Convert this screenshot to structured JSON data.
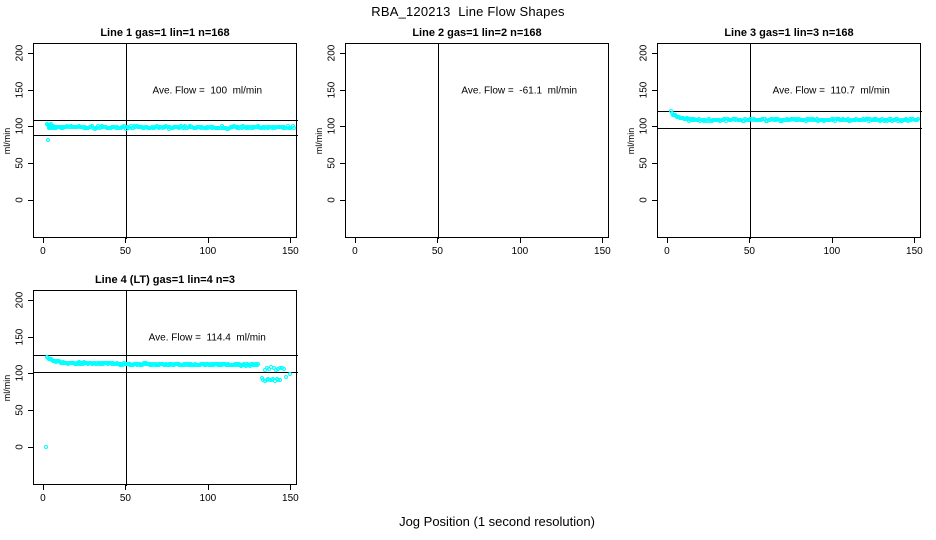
{
  "page": {
    "main_title": "RBA_120213  Line Flow Shapes",
    "x_axis_label": "Jog Position (1 second resolution)",
    "background_color": "#ffffff",
    "axis_color": "#000000"
  },
  "chart_data": {
    "type": "scatter",
    "point_color": "#00ffff",
    "layout": {
      "rows": 2,
      "cols": 3,
      "xlim": [
        -6,
        154
      ],
      "ylim": [
        -51,
        213
      ],
      "x_ticks": [
        0,
        50,
        100,
        150
      ],
      "y_ticks": [
        0,
        50,
        100,
        150,
        200
      ],
      "grid": false,
      "legend": "none"
    },
    "shared": {
      "ylabel": "ml/min",
      "vline_x": 50,
      "annotation_x": 99,
      "annotation_y": 150
    },
    "plots": [
      {
        "row": 0,
        "col": 0,
        "title": "Line 1 gas=1 lin=1 n=168",
        "n": 168,
        "ave_flow": 100,
        "annotation": "Ave. Flow =  100  ml/min",
        "hlines": [
          110,
          90
        ],
        "points_spec": [
          {
            "kind": "point",
            "x": 2.2,
            "y": 83
          },
          {
            "kind": "band",
            "x_start": 2,
            "x_end": 4.5,
            "x_step": 0.6,
            "y": 103.5,
            "jitter": 1.5
          },
          {
            "kind": "decay",
            "x_start": 2.5,
            "x_end": 12,
            "x_step": 0.6,
            "y_from": 104,
            "y_to": 100.3,
            "jitter": 0.6
          },
          {
            "kind": "band",
            "x_start": 3,
            "x_end": 152,
            "x_step": 0.75,
            "y": 100,
            "jitter": 1.5
          }
        ]
      },
      {
        "row": 0,
        "col": 1,
        "title": "Line 2 gas=1 lin=2 n=168",
        "n": 168,
        "ave_flow": -61.1,
        "annotation": "Ave. Flow =  -61.1  ml/min",
        "hlines": [],
        "points_spec": []
      },
      {
        "row": 0,
        "col": 2,
        "title": "Line 3 gas=1 lin=3 n=168",
        "n": 168,
        "ave_flow": 110.7,
        "annotation": "Ave. Flow =  110.7  ml/min",
        "hlines": [
          121.8,
          99.6
        ],
        "points_spec": [
          {
            "kind": "point",
            "x": 2,
            "y": 122
          },
          {
            "kind": "decay",
            "x_start": 2.6,
            "x_end": 16,
            "x_step": 0.6,
            "y_from": 119.5,
            "y_to": 111,
            "jitter": 0.7
          },
          {
            "kind": "band",
            "x_start": 13,
            "x_end": 152,
            "x_step": 0.75,
            "y": 110.4,
            "jitter": 1.4
          }
        ]
      },
      {
        "row": 1,
        "col": 0,
        "title": "Line 4 (LT) gas=1 lin=4 n=3",
        "n": 3,
        "ave_flow": 114.4,
        "annotation": "Ave. Flow =  114.4  ml/min",
        "hlines": [
          125.8,
          103
        ],
        "points_spec": [
          {
            "kind": "point",
            "x": 1,
            "y": 2
          },
          {
            "kind": "decay",
            "x_start": 2,
            "x_end": 24,
            "x_step": 0.6,
            "y_from": 122.5,
            "y_to": 114.8,
            "jitter": 0.8
          },
          {
            "kind": "decay",
            "x_start": 20,
            "x_end": 130,
            "x_step": 0.55,
            "y_from": 116,
            "y_to": 113.2,
            "jitter": 1.2
          },
          {
            "kind": "band",
            "x_start": 134,
            "x_end": 147,
            "x_step": 1.3,
            "y": 108,
            "jitter": 1.6
          },
          {
            "kind": "band",
            "x_start": 132,
            "x_end": 143,
            "x_step": 1.0,
            "y": 93.5,
            "jitter": 2.0
          },
          {
            "kind": "point",
            "x": 146.5,
            "y": 96
          },
          {
            "kind": "point",
            "x": 149,
            "y": 100.5
          }
        ]
      }
    ]
  }
}
